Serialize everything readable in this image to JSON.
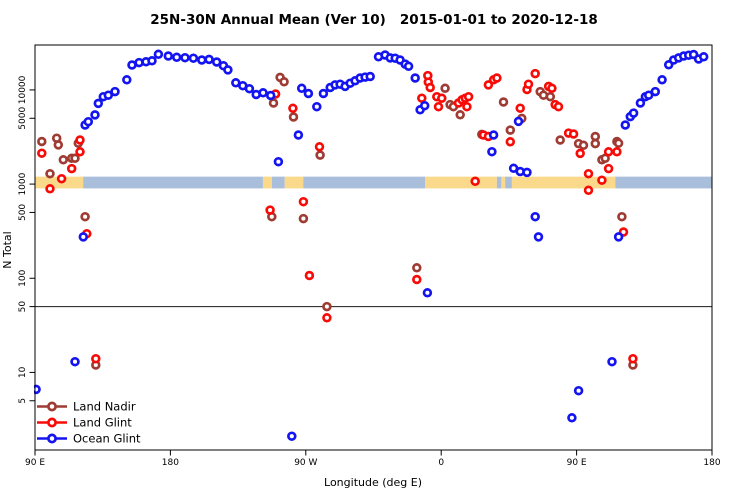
{
  "chart_data": {
    "type": "scatter",
    "title": "25N-30N Annual Mean (Ver 10)   2015-01-01 to 2020-12-18",
    "xlabel": "Longitude (deg E)",
    "ylabel": "N Total",
    "y_scale": "log",
    "xlim": [
      90,
      540
    ],
    "ylim": [
      1.5,
      30000
    ],
    "x_ticks": [
      {
        "value": 90,
        "label": "90 E"
      },
      {
        "value": 180,
        "label": "180"
      },
      {
        "value": 270,
        "label": "90 W"
      },
      {
        "value": 360,
        "label": "0"
      },
      {
        "value": 450,
        "label": "90 E"
      },
      {
        "value": 540,
        "label": "180"
      }
    ],
    "y_ticks": [
      5,
      10,
      50,
      100,
      500,
      1000,
      5000,
      10000
    ],
    "reference_line": {
      "value": 50,
      "color": "#1a1a1a"
    },
    "map_band": {
      "top_value": 1200,
      "bottom_value": 900,
      "colors": {
        "land": "#FBD98B",
        "ocean": "#A9BEDB"
      },
      "segments": [
        {
          "from": 90,
          "to": 122,
          "surface": "land"
        },
        {
          "from": 122,
          "to": 241.5,
          "surface": "ocean"
        },
        {
          "from": 241.5,
          "to": 247.5,
          "surface": "land"
        },
        {
          "from": 247.5,
          "to": 256,
          "surface": "ocean"
        },
        {
          "from": 256,
          "to": 268.3,
          "surface": "land"
        },
        {
          "from": 268.3,
          "to": 349.4,
          "surface": "ocean"
        },
        {
          "from": 349.4,
          "to": 397,
          "surface": "land"
        },
        {
          "from": 397,
          "to": 400,
          "surface": "ocean"
        },
        {
          "from": 400,
          "to": 402.5,
          "surface": "land"
        },
        {
          "from": 402.5,
          "to": 407,
          "surface": "ocean"
        },
        {
          "from": 407,
          "to": 475.7,
          "surface": "land"
        },
        {
          "from": 475.7,
          "to": 540,
          "surface": "ocean"
        }
      ]
    },
    "series": [
      {
        "name": "Land Nadir",
        "color": "#9E3B33",
        "points": [
          [
            94.5,
            2830
          ],
          [
            100.0,
            1290
          ],
          [
            104.4,
            3070
          ],
          [
            105.5,
            2610
          ],
          [
            108.8,
            1810
          ],
          [
            114.4,
            1880
          ],
          [
            116.6,
            1880
          ],
          [
            118.8,
            2720
          ],
          [
            123.3,
            450
          ],
          [
            130.4,
            12
          ],
          [
            247.4,
            450
          ],
          [
            248.5,
            7270
          ],
          [
            252.9,
            13600
          ],
          [
            255.6,
            12200
          ],
          [
            261.8,
            5160
          ],
          [
            268.4,
            430
          ],
          [
            279.5,
            2030
          ],
          [
            284.0,
            50
          ],
          [
            343.8,
            129
          ],
          [
            362.6,
            10400
          ],
          [
            365.9,
            6980
          ],
          [
            368.1,
            6640
          ],
          [
            372.6,
            5440
          ],
          [
            387.0,
            3370
          ],
          [
            401.4,
            7450
          ],
          [
            405.9,
            3740
          ],
          [
            413.6,
            4990
          ],
          [
            425.8,
            9590
          ],
          [
            428.0,
            8800
          ],
          [
            432.5,
            8480
          ],
          [
            439.1,
            2940
          ],
          [
            451.3,
            2690
          ],
          [
            454.6,
            2580
          ],
          [
            462.4,
            3200
          ],
          [
            462.4,
            2690
          ],
          [
            466.8,
            1810
          ],
          [
            469.0,
            1880
          ],
          [
            476.8,
            2830
          ],
          [
            477.9,
            2720
          ],
          [
            480.1,
            450
          ],
          [
            487.4,
            12
          ]
        ]
      },
      {
        "name": "Land Glint",
        "color": "#F80B06",
        "points": [
          [
            94.5,
            2130
          ],
          [
            100.0,
            892
          ],
          [
            107.7,
            1140
          ],
          [
            114.4,
            1460
          ],
          [
            119.9,
            2940
          ],
          [
            119.9,
            2200
          ],
          [
            124.4,
            297
          ],
          [
            130.4,
            14
          ],
          [
            246.3,
            530
          ],
          [
            249.9,
            9060
          ],
          [
            261.4,
            6380
          ],
          [
            268.4,
            650
          ],
          [
            272.4,
            107
          ],
          [
            279.1,
            2490
          ],
          [
            284.0,
            38
          ],
          [
            343.8,
            97
          ],
          [
            347.1,
            8160
          ],
          [
            351.1,
            14200
          ],
          [
            351.4,
            12100
          ],
          [
            352.7,
            10600
          ],
          [
            357.1,
            8480
          ],
          [
            358.2,
            6640
          ],
          [
            360.4,
            8160
          ],
          [
            371.5,
            7270
          ],
          [
            373.8,
            7860
          ],
          [
            376.0,
            8160
          ],
          [
            377.1,
            6640
          ],
          [
            378.2,
            8480
          ],
          [
            382.6,
            1070
          ],
          [
            388.1,
            3320
          ],
          [
            391.4,
            3200
          ],
          [
            391.4,
            11300
          ],
          [
            394.8,
            12800
          ],
          [
            397.0,
            13400
          ],
          [
            405.9,
            2810
          ],
          [
            412.5,
            6400
          ],
          [
            417.0,
            10100
          ],
          [
            418.0,
            11500
          ],
          [
            422.5,
            14900
          ],
          [
            431.4,
            10900
          ],
          [
            433.6,
            10400
          ],
          [
            435.8,
            6980
          ],
          [
            438.0,
            6640
          ],
          [
            444.7,
            3480
          ],
          [
            448.0,
            3400
          ],
          [
            452.4,
            2120
          ],
          [
            457.9,
            1290
          ],
          [
            457.9,
            860
          ],
          [
            466.8,
            1100
          ],
          [
            471.3,
            2200
          ],
          [
            471.3,
            1460
          ],
          [
            476.8,
            2200
          ],
          [
            481.2,
            310
          ],
          [
            487.4,
            14
          ]
        ]
      },
      {
        "name": "Ocean Glint",
        "color": "#1414F0",
        "points": [
          [
            90.7,
            6.6
          ],
          [
            116.6,
            13
          ],
          [
            122.1,
            275
          ],
          [
            123.3,
            4240
          ],
          [
            125.4,
            4600
          ],
          [
            129.9,
            5430
          ],
          [
            132.1,
            7200
          ],
          [
            135.4,
            8480
          ],
          [
            138.7,
            8800
          ],
          [
            143.2,
            9590
          ],
          [
            151.0,
            12800
          ],
          [
            154.5,
            18400
          ],
          [
            159.2,
            19500
          ],
          [
            163.8,
            19900
          ],
          [
            167.8,
            20400
          ],
          [
            172.0,
            23900
          ],
          [
            178.6,
            22900
          ],
          [
            184.2,
            22200
          ],
          [
            189.7,
            22000
          ],
          [
            195.3,
            21700
          ],
          [
            200.9,
            20800
          ],
          [
            205.7,
            21100
          ],
          [
            210.8,
            19800
          ],
          [
            215.2,
            18100
          ],
          [
            218.2,
            16300
          ],
          [
            223.5,
            11900
          ],
          [
            228.1,
            11100
          ],
          [
            232.5,
            10300
          ],
          [
            237.0,
            8950
          ],
          [
            241.6,
            9330
          ],
          [
            246.7,
            8730
          ],
          [
            251.8,
            1730
          ],
          [
            260.7,
            2.1
          ],
          [
            265.1,
            3320
          ],
          [
            267.3,
            10400
          ],
          [
            271.7,
            9170
          ],
          [
            277.3,
            6640
          ],
          [
            281.7,
            9170
          ],
          [
            286.2,
            10600
          ],
          [
            289.5,
            11300
          ],
          [
            292.8,
            11500
          ],
          [
            296.1,
            10900
          ],
          [
            299.5,
            11800
          ],
          [
            302.8,
            12500
          ],
          [
            306.1,
            13400
          ],
          [
            309.4,
            13700
          ],
          [
            312.8,
            13900
          ],
          [
            318.3,
            22500
          ],
          [
            322.7,
            23500
          ],
          [
            326.1,
            21900
          ],
          [
            329.4,
            21700
          ],
          [
            332.7,
            20800
          ],
          [
            336.1,
            18800
          ],
          [
            338.3,
            17800
          ],
          [
            342.7,
            13400
          ],
          [
            346.0,
            6150
          ],
          [
            349.0,
            6800
          ],
          [
            350.8,
            70
          ],
          [
            393.7,
            2210
          ],
          [
            394.8,
            3320
          ],
          [
            408.1,
            1470
          ],
          [
            411.4,
            4630
          ],
          [
            412.5,
            1360
          ],
          [
            417.0,
            1330
          ],
          [
            422.5,
            450
          ],
          [
            424.7,
            275
          ],
          [
            446.9,
            3.3
          ],
          [
            451.3,
            6.4
          ],
          [
            473.5,
            13
          ],
          [
            477.9,
            275
          ],
          [
            482.4,
            4240
          ],
          [
            485.7,
            5210
          ],
          [
            487.9,
            5670
          ],
          [
            492.4,
            7270
          ],
          [
            495.7,
            8480
          ],
          [
            497.9,
            8800
          ],
          [
            502.3,
            9590
          ],
          [
            506.8,
            12800
          ],
          [
            511.2,
            18500
          ],
          [
            514.5,
            20800
          ],
          [
            517.8,
            21900
          ],
          [
            521.2,
            22900
          ],
          [
            524.5,
            23400
          ],
          [
            527.8,
            23800
          ],
          [
            531.1,
            21300
          ],
          [
            534.5,
            22500
          ]
        ]
      }
    ],
    "legend": {
      "position": "bottom-left",
      "entries": [
        {
          "label": "Land Nadir",
          "color": "#9E3B33"
        },
        {
          "label": "Land Glint",
          "color": "#F80B06"
        },
        {
          "label": "Ocean Glint",
          "color": "#1414F0"
        }
      ]
    }
  }
}
